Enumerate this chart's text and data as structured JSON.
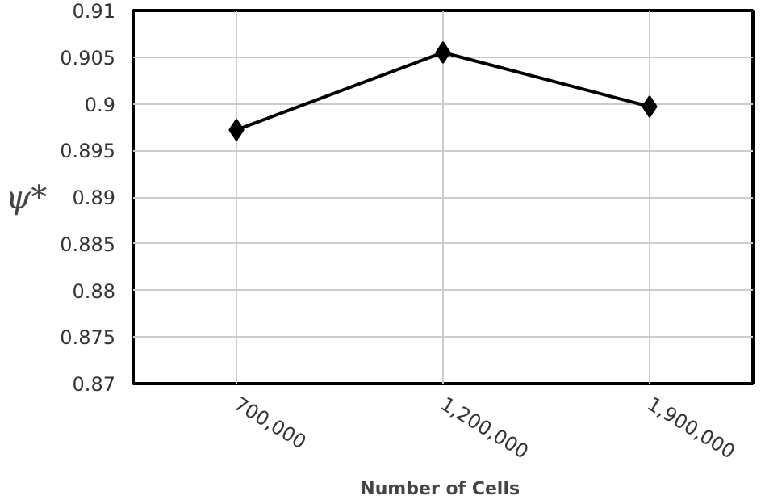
{
  "chart_data": {
    "type": "line",
    "xlabel": "Number of  Cells",
    "ylabel": "ψ*",
    "categories": [
      "700,000",
      "1,200,000",
      "1,900,000"
    ],
    "series": [
      {
        "color": "#000000",
        "values": [
          0.8972,
          0.9055,
          0.8997
        ]
      }
    ],
    "ylim": [
      0.87,
      0.91
    ],
    "yticks": [
      0.87,
      0.875,
      0.88,
      0.885,
      0.89,
      0.895,
      0.9,
      0.905,
      0.91
    ],
    "grid": true,
    "marker": "diamond",
    "line_style": "solid"
  }
}
